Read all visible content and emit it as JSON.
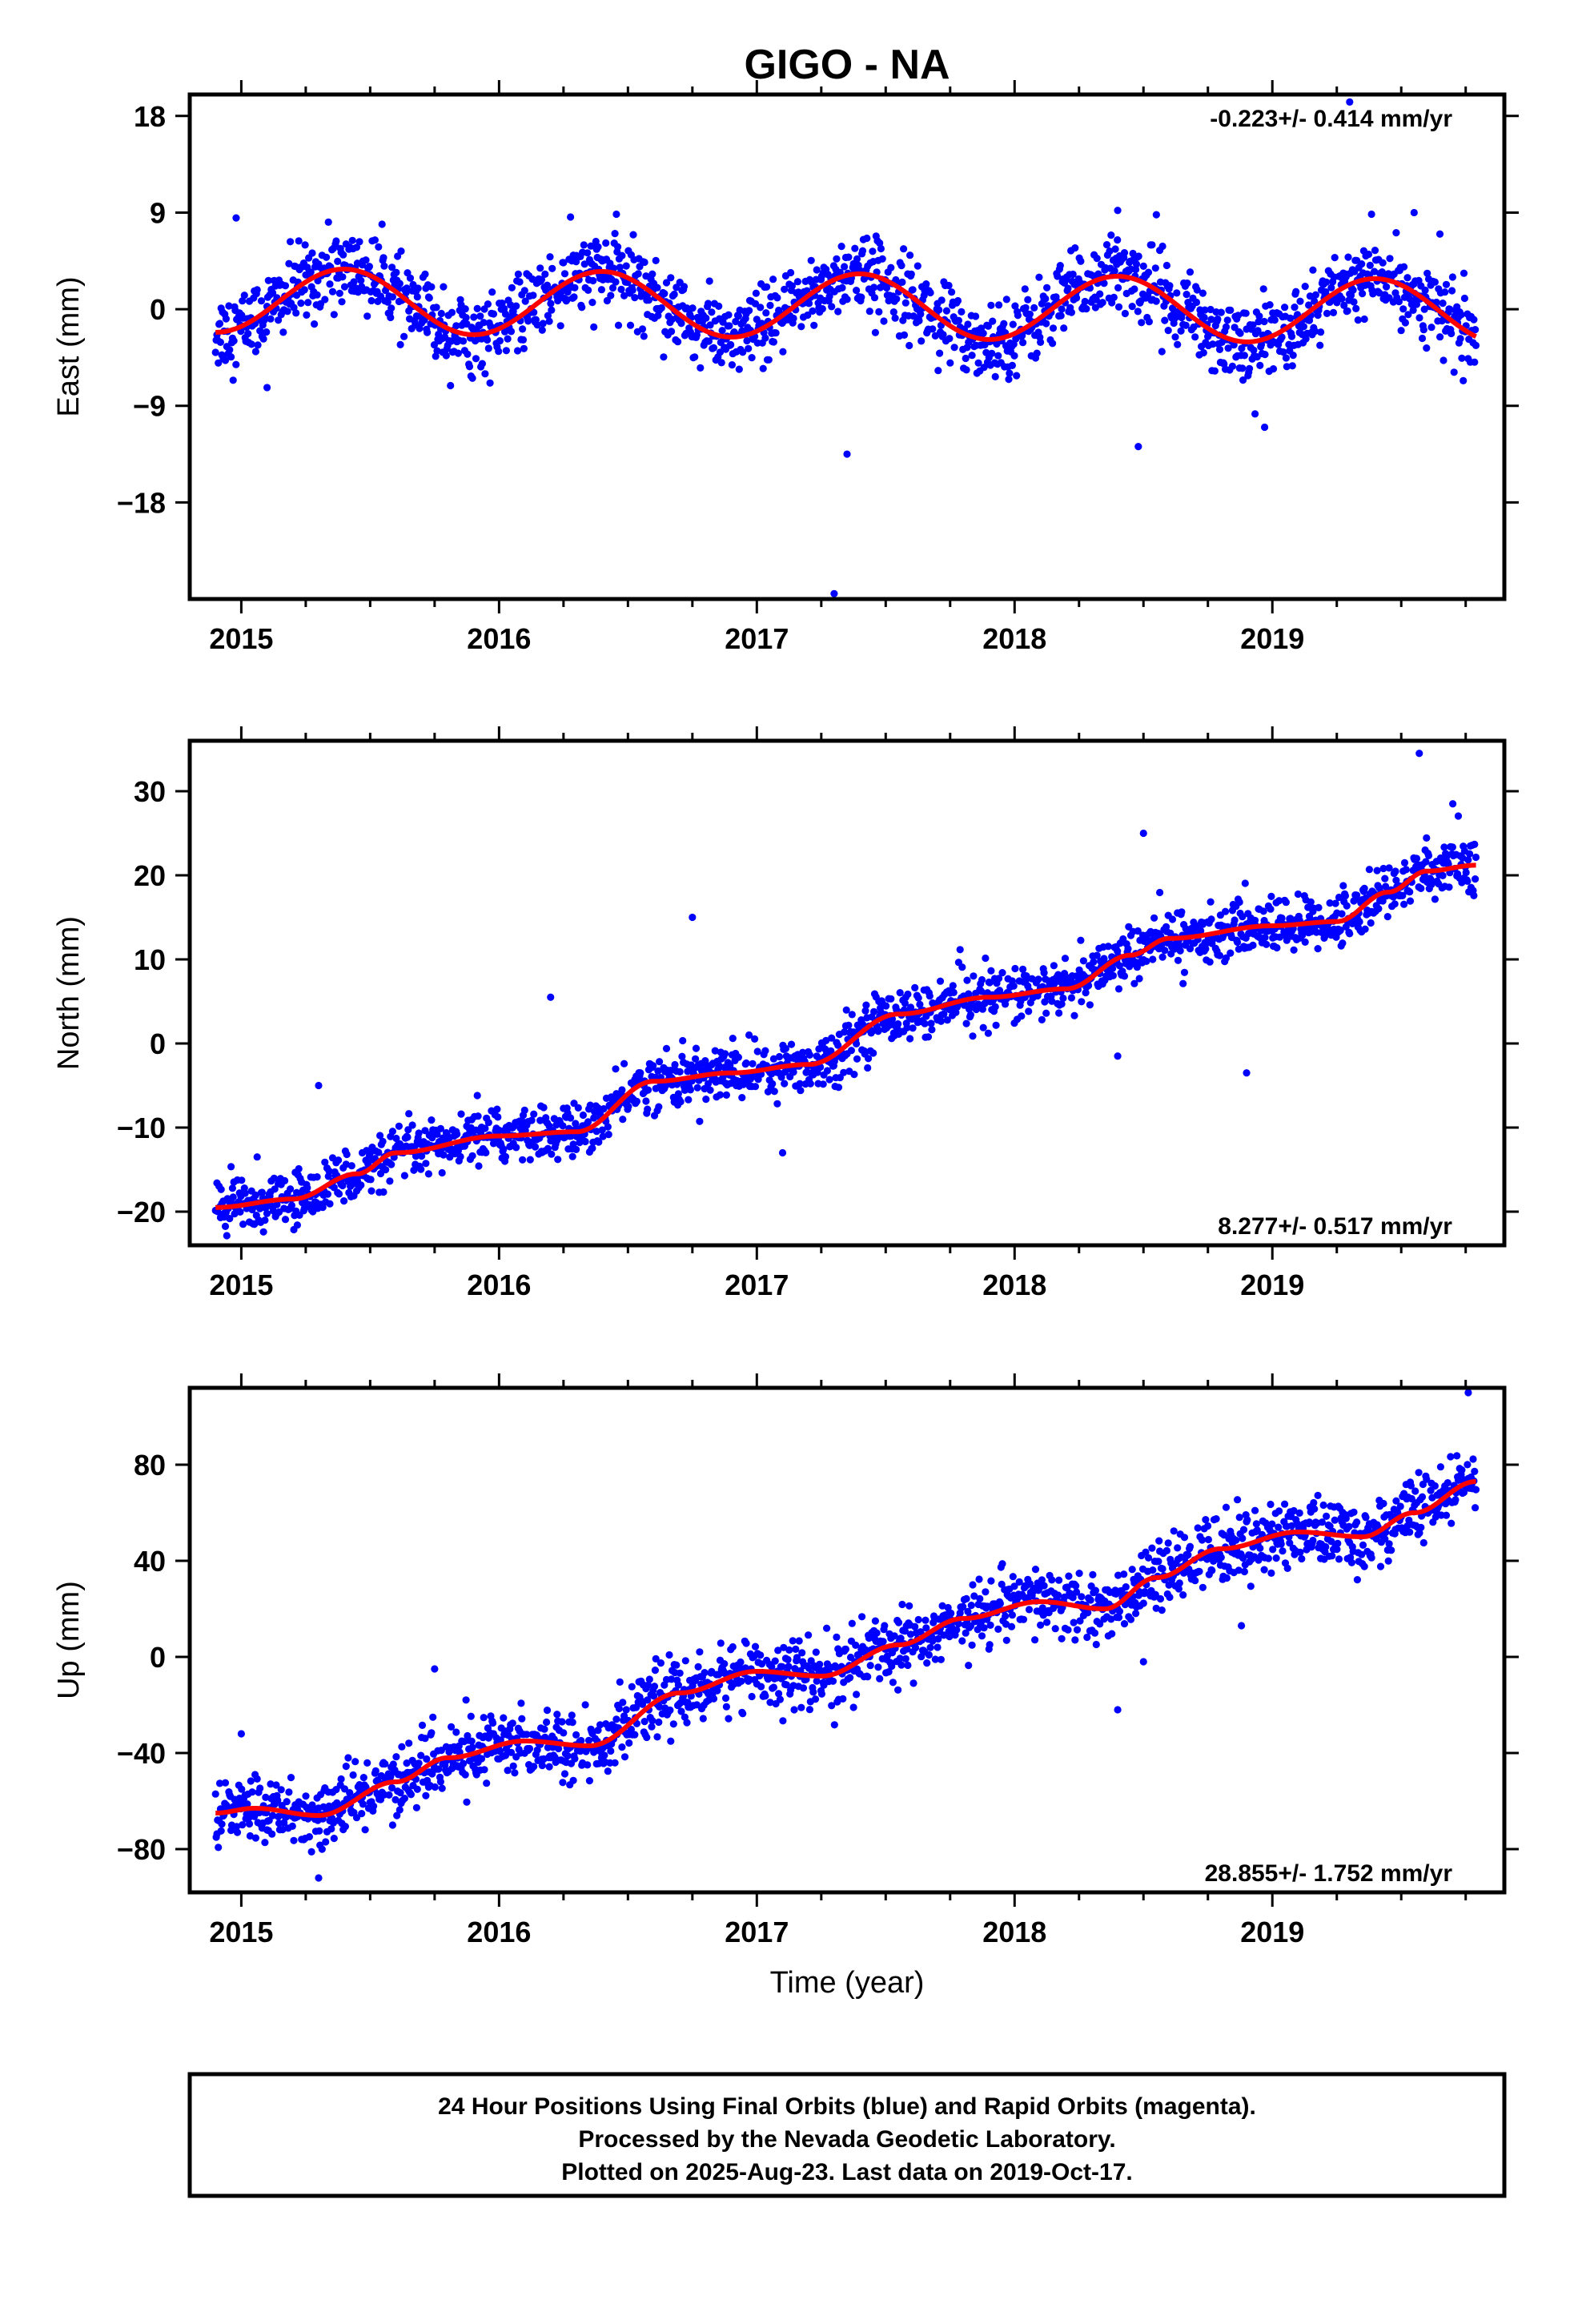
{
  "title": "GIGO - NA",
  "caption": [
    "24 Hour Positions Using Final Orbits (blue) and Rapid Orbits (magenta).",
    "Processed by the Nevada Geodetic Laboratory.",
    "Plotted on 2025-Aug-23. Last data on 2019-Oct-17."
  ],
  "colors": {
    "points": "#0000ff",
    "fit": "#ff0000",
    "frame": "#000000"
  },
  "chart_data": [
    {
      "type": "scatter",
      "component": "east",
      "ylabel": "East (mm)",
      "rate_label": "-0.223+/- 0.414 mm/yr",
      "rate_position": "top-right",
      "xlim": [
        2014.8,
        2019.9
      ],
      "ylim": [
        -27,
        20
      ],
      "xticks": [
        2015,
        2016,
        2017,
        2018,
        2019
      ],
      "yticks": [
        18,
        9,
        0,
        -9,
        -18
      ],
      "ytick_labels": [
        "18",
        "9",
        "0",
        "−9",
        "−18"
      ],
      "series": [
        {
          "kind": "daily-positions",
          "x_start": 2014.9,
          "x_end": 2019.79,
          "trend_mm_per_yr": -0.223,
          "offset_mm": 0.3,
          "annual_amplitude_mm": 3.0,
          "annual_phase_year": 0.15,
          "scatter_mm": 1.8
        },
        {
          "kind": "fit",
          "x_start": 2014.9,
          "x_end": 2019.79,
          "trend_mm_per_yr": -0.223,
          "offset_mm": 0.3,
          "annual_amplitude_mm": 3.0,
          "annual_phase_year": 0.15
        }
      ],
      "outliers": [
        {
          "x": 2019.3,
          "y": 19.3
        },
        {
          "x": 2017.35,
          "y": -13.5
        },
        {
          "x": 2017.3,
          "y": -26.5
        },
        {
          "x": 2018.48,
          "y": -12.8
        },
        {
          "x": 2018.97,
          "y": -11
        },
        {
          "x": 2014.98,
          "y": 8.5
        },
        {
          "x": 2018.4,
          "y": 9.2
        },
        {
          "x": 2018.55,
          "y": 8.8
        },
        {
          "x": 2019.55,
          "y": 9
        },
        {
          "x": 2015.1,
          "y": -7.3
        },
        {
          "x": 2016.3,
          "y": 5
        },
        {
          "x": 2019.65,
          "y": 7
        }
      ]
    },
    {
      "type": "scatter",
      "component": "north",
      "ylabel": "North (mm)",
      "rate_label": "8.277+/- 0.517 mm/yr",
      "rate_position": "bottom-right",
      "xlim": [
        2014.8,
        2019.9
      ],
      "ylim": [
        -24,
        36
      ],
      "xticks": [
        2015,
        2016,
        2017,
        2018,
        2019
      ],
      "yticks": [
        30,
        20,
        10,
        0,
        -10,
        -20
      ],
      "ytick_labels": [
        "30",
        "20",
        "10",
        "0",
        "−10",
        "−20"
      ],
      "series": [
        {
          "kind": "daily-positions",
          "fit_points": [
            [
              2014.9,
              -19.5
            ],
            [
              2015.2,
              -18.5
            ],
            [
              2015.45,
              -15.5
            ],
            [
              2015.6,
              -13
            ],
            [
              2016.0,
              -11
            ],
            [
              2016.3,
              -10.5
            ],
            [
              2016.6,
              -4.5
            ],
            [
              2016.9,
              -3.5
            ],
            [
              2017.2,
              -2.5
            ],
            [
              2017.55,
              3.5
            ],
            [
              2017.9,
              5.5
            ],
            [
              2018.2,
              6.5
            ],
            [
              2018.45,
              10.5
            ],
            [
              2018.6,
              12.5
            ],
            [
              2019.0,
              14
            ],
            [
              2019.25,
              14.5
            ],
            [
              2019.45,
              18
            ],
            [
              2019.6,
              20.5
            ],
            [
              2019.79,
              21.2
            ]
          ],
          "scatter_mm": 1.6
        },
        {
          "kind": "fit",
          "fit_points": [
            [
              2014.9,
              -19.5
            ],
            [
              2015.2,
              -18.5
            ],
            [
              2015.45,
              -15.5
            ],
            [
              2015.6,
              -13
            ],
            [
              2016.0,
              -11
            ],
            [
              2016.3,
              -10.5
            ],
            [
              2016.6,
              -4.5
            ],
            [
              2016.9,
              -3.5
            ],
            [
              2017.2,
              -2.5
            ],
            [
              2017.55,
              3.5
            ],
            [
              2017.9,
              5.5
            ],
            [
              2018.2,
              6.5
            ],
            [
              2018.45,
              10.5
            ],
            [
              2018.6,
              12.5
            ],
            [
              2019.0,
              14
            ],
            [
              2019.25,
              14.5
            ],
            [
              2019.45,
              18
            ],
            [
              2019.6,
              20.5
            ],
            [
              2019.79,
              21.2
            ]
          ]
        }
      ],
      "outliers": [
        {
          "x": 2019.57,
          "y": 34.5
        },
        {
          "x": 2019.7,
          "y": 28.5
        },
        {
          "x": 2018.5,
          "y": 25
        },
        {
          "x": 2016.75,
          "y": 15
        },
        {
          "x": 2016.2,
          "y": 5.5
        },
        {
          "x": 2018.9,
          "y": -3.5
        },
        {
          "x": 2017.1,
          "y": -13
        },
        {
          "x": 2018.4,
          "y": -1.5
        },
        {
          "x": 2015.3,
          "y": -5
        }
      ]
    },
    {
      "type": "scatter",
      "component": "up",
      "ylabel": "Up (mm)",
      "rate_label": "28.855+/- 1.752 mm/yr",
      "rate_position": "bottom-right",
      "xlim": [
        2014.8,
        2019.9
      ],
      "ylim": [
        -98,
        112
      ],
      "xticks": [
        2015,
        2016,
        2017,
        2018,
        2019
      ],
      "yticks": [
        80,
        40,
        0,
        -40,
        -80
      ],
      "ytick_labels": [
        "80",
        "40",
        "0",
        "−40",
        "−80"
      ],
      "series": [
        {
          "kind": "daily-positions",
          "fit_points": [
            [
              2014.9,
              -65
            ],
            [
              2015.05,
              -63
            ],
            [
              2015.3,
              -66
            ],
            [
              2015.6,
              -52
            ],
            [
              2015.8,
              -42
            ],
            [
              2016.1,
              -35
            ],
            [
              2016.35,
              -37
            ],
            [
              2016.7,
              -15
            ],
            [
              2017.0,
              -6
            ],
            [
              2017.25,
              -8
            ],
            [
              2017.55,
              5
            ],
            [
              2017.8,
              16
            ],
            [
              2018.1,
              23
            ],
            [
              2018.35,
              20
            ],
            [
              2018.55,
              33
            ],
            [
              2018.8,
              45
            ],
            [
              2019.1,
              52
            ],
            [
              2019.35,
              50
            ],
            [
              2019.55,
              60
            ],
            [
              2019.79,
              73
            ]
          ],
          "scatter_mm": 7
        },
        {
          "kind": "fit",
          "fit_points": [
            [
              2014.9,
              -65
            ],
            [
              2015.05,
              -63
            ],
            [
              2015.3,
              -66
            ],
            [
              2015.6,
              -52
            ],
            [
              2015.8,
              -42
            ],
            [
              2016.1,
              -35
            ],
            [
              2016.35,
              -37
            ],
            [
              2016.7,
              -15
            ],
            [
              2017.0,
              -6
            ],
            [
              2017.25,
              -8
            ],
            [
              2017.55,
              5
            ],
            [
              2017.8,
              16
            ],
            [
              2018.1,
              23
            ],
            [
              2018.35,
              20
            ],
            [
              2018.55,
              33
            ],
            [
              2018.8,
              45
            ],
            [
              2019.1,
              52
            ],
            [
              2019.35,
              50
            ],
            [
              2019.55,
              60
            ],
            [
              2019.79,
              73
            ]
          ]
        }
      ],
      "outliers": [
        {
          "x": 2019.76,
          "y": 110
        },
        {
          "x": 2015.3,
          "y": -92
        },
        {
          "x": 2018.4,
          "y": -22
        },
        {
          "x": 2015.75,
          "y": -5
        },
        {
          "x": 2018.88,
          "y": 13
        },
        {
          "x": 2018.5,
          "y": -2
        },
        {
          "x": 2015.0,
          "y": -32
        }
      ]
    }
  ]
}
